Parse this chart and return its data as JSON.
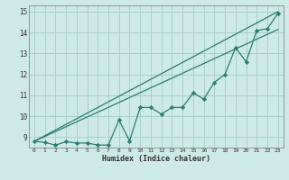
{
  "xlabel": "Humidex (Indice chaleur)",
  "yticks": [
    9,
    10,
    11,
    12,
    13,
    14,
    15
  ],
  "xticks": [
    0,
    1,
    2,
    3,
    4,
    5,
    6,
    7,
    8,
    9,
    10,
    11,
    12,
    13,
    14,
    15,
    16,
    17,
    18,
    19,
    20,
    21,
    22,
    23
  ],
  "xlim": [
    -0.5,
    23.5
  ],
  "ylim": [
    8.5,
    15.3
  ],
  "bg_color": "#ceeae6",
  "line_color": "#2d7b72",
  "grid_color": "#aacfcb",
  "line1_x": [
    0,
    23
  ],
  "line1_y": [
    8.8,
    15.0
  ],
  "line2_x": [
    0,
    23
  ],
  "line2_y": [
    8.8,
    14.15
  ],
  "data_x": [
    0,
    1,
    2,
    3,
    4,
    5,
    6,
    7,
    8,
    9,
    10,
    11,
    12,
    13,
    14,
    15,
    16,
    17,
    18,
    19,
    20,
    21,
    22,
    23
  ],
  "data_y": [
    8.8,
    8.75,
    8.62,
    8.78,
    8.72,
    8.72,
    8.62,
    8.62,
    9.82,
    8.82,
    10.42,
    10.42,
    10.1,
    10.42,
    10.42,
    11.12,
    10.82,
    11.62,
    12.0,
    13.28,
    12.6,
    14.1,
    14.18,
    14.92
  ]
}
